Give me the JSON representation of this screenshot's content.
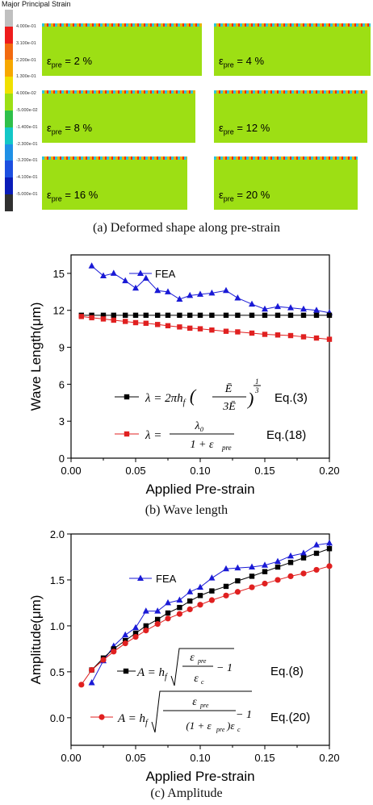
{
  "panel_a": {
    "legend_title": "Major Principal Strain",
    "colorbar_labels": [
      "4.000e-01",
      "3.100e-01",
      "2.200e-01",
      "1.300e-01",
      "4.000e-02",
      "-5.000e-02",
      "-1.400e-01",
      "-2.300e-01",
      "-3.200e-01",
      "-4.100e-01",
      "-5.000e-01"
    ],
    "colorbar_colors": [
      "#c0c0c0",
      "#ee1c1c",
      "#f26a10",
      "#f7a800",
      "#f0e000",
      "#9ddf14",
      "#2fc04a",
      "#13c7c7",
      "#1f90e6",
      "#1c4fe0",
      "#0a1cb8",
      "#303030"
    ],
    "panels": [
      {
        "eps": "ε",
        "sub": "pre",
        "value": " = 2 %"
      },
      {
        "eps": "ε",
        "sub": "pre",
        "value": " = 4 %"
      },
      {
        "eps": "ε",
        "sub": "pre",
        "value": " = 8 %"
      },
      {
        "eps": "ε",
        "sub": "pre",
        "value": " = 12 %"
      },
      {
        "eps": "ε",
        "sub": "pre",
        "value": " = 16 %"
      },
      {
        "eps": "ε",
        "sub": "pre",
        "value": " = 20 %"
      }
    ],
    "caption": "(a) Deformed shape along pre-strain"
  },
  "panel_b_caption": "(b) Wave length",
  "panel_c_caption": "(c) Amplitude",
  "chart_data": [
    {
      "type": "line",
      "xlabel": "Applied Pre-strain",
      "ylabel": "Wave Length(μm)",
      "xlim": [
        0.0,
        0.2
      ],
      "ylim": [
        0,
        16.5
      ],
      "xticks": [
        "0.00",
        "0.05",
        "0.10",
        "0.15",
        "0.20"
      ],
      "yticks": [
        "0",
        "3",
        "6",
        "9",
        "12",
        "15"
      ],
      "series": [
        {
          "name": "FEA",
          "color": "#1a1ad6",
          "marker": "triangle",
          "x": [
            0.016,
            0.025,
            0.033,
            0.042,
            0.05,
            0.058,
            0.067,
            0.075,
            0.084,
            0.092,
            0.1,
            0.109,
            0.12,
            0.129,
            0.14,
            0.15,
            0.16,
            0.17,
            0.18,
            0.19,
            0.2
          ],
          "y": [
            15.6,
            14.8,
            15.0,
            14.4,
            13.8,
            14.6,
            13.6,
            13.5,
            12.9,
            13.2,
            13.3,
            13.4,
            13.6,
            13.0,
            12.5,
            12.1,
            12.3,
            12.2,
            12.1,
            12.0,
            11.8
          ]
        },
        {
          "name": "Eq.(3)",
          "color": "#000000",
          "marker": "square",
          "x": [
            0.008,
            0.016,
            0.025,
            0.033,
            0.042,
            0.05,
            0.058,
            0.067,
            0.075,
            0.084,
            0.092,
            0.1,
            0.109,
            0.12,
            0.129,
            0.14,
            0.15,
            0.16,
            0.17,
            0.18,
            0.19,
            0.2
          ],
          "y": [
            11.6,
            11.6,
            11.6,
            11.6,
            11.6,
            11.6,
            11.6,
            11.6,
            11.6,
            11.6,
            11.6,
            11.6,
            11.6,
            11.6,
            11.6,
            11.6,
            11.6,
            11.6,
            11.6,
            11.6,
            11.6,
            11.6
          ]
        },
        {
          "name": "Eq.(18)",
          "color": "#e02020",
          "marker": "square",
          "x": [
            0.008,
            0.016,
            0.025,
            0.033,
            0.042,
            0.05,
            0.058,
            0.067,
            0.075,
            0.084,
            0.092,
            0.1,
            0.109,
            0.12,
            0.129,
            0.14,
            0.15,
            0.16,
            0.17,
            0.18,
            0.19,
            0.2
          ],
          "y": [
            11.5,
            11.4,
            11.3,
            11.2,
            11.1,
            11.0,
            10.95,
            10.85,
            10.75,
            10.65,
            10.55,
            10.5,
            10.4,
            10.3,
            10.25,
            10.15,
            10.05,
            10.0,
            9.95,
            9.85,
            9.75,
            9.65
          ]
        }
      ],
      "legend": {
        "fea": "FEA",
        "eq3_label": "Eq.(3)",
        "eq18_label": "Eq.(18)",
        "eq3_text": "λ = 2πh",
        "eq18_text": "λ ="
      }
    },
    {
      "type": "line",
      "xlabel": "Applied Pre-strain",
      "ylabel": "Amplitude(μm)",
      "xlim": [
        0.0,
        0.2
      ],
      "ylim": [
        -0.3,
        2.0
      ],
      "xticks": [
        "0.00",
        "0.05",
        "0.10",
        "0.15",
        "0.20"
      ],
      "yticks": [
        "0.0",
        "0.5",
        "1.0",
        "1.5",
        "2.0"
      ],
      "series": [
        {
          "name": "FEA",
          "color": "#1a1ad6",
          "marker": "triangle",
          "x": [
            0.016,
            0.025,
            0.033,
            0.042,
            0.05,
            0.058,
            0.067,
            0.075,
            0.084,
            0.092,
            0.1,
            0.109,
            0.12,
            0.129,
            0.14,
            0.15,
            0.16,
            0.17,
            0.18,
            0.19,
            0.2
          ],
          "y": [
            0.38,
            0.62,
            0.78,
            0.9,
            0.98,
            1.16,
            1.16,
            1.25,
            1.28,
            1.37,
            1.42,
            1.52,
            1.62,
            1.63,
            1.64,
            1.66,
            1.7,
            1.76,
            1.79,
            1.88,
            1.9
          ]
        },
        {
          "name": "Eq.(8)",
          "color": "#000000",
          "marker": "square",
          "x": [
            0.016,
            0.025,
            0.033,
            0.042,
            0.05,
            0.058,
            0.067,
            0.075,
            0.084,
            0.092,
            0.1,
            0.109,
            0.12,
            0.129,
            0.14,
            0.15,
            0.16,
            0.17,
            0.18,
            0.19,
            0.2
          ],
          "y": [
            0.52,
            0.65,
            0.75,
            0.84,
            0.92,
            1.0,
            1.07,
            1.14,
            1.2,
            1.27,
            1.33,
            1.38,
            1.43,
            1.49,
            1.54,
            1.59,
            1.64,
            1.69,
            1.74,
            1.79,
            1.84
          ]
        },
        {
          "name": "Eq.(20)",
          "color": "#e02020",
          "marker": "circle",
          "x": [
            0.008,
            0.016,
            0.025,
            0.033,
            0.042,
            0.05,
            0.058,
            0.067,
            0.075,
            0.084,
            0.092,
            0.1,
            0.109,
            0.12,
            0.129,
            0.14,
            0.15,
            0.16,
            0.17,
            0.18,
            0.19,
            0.2
          ],
          "y": [
            0.36,
            0.52,
            0.63,
            0.72,
            0.81,
            0.88,
            0.95,
            1.02,
            1.08,
            1.13,
            1.18,
            1.23,
            1.28,
            1.33,
            1.37,
            1.42,
            1.46,
            1.5,
            1.54,
            1.57,
            1.61,
            1.65
          ]
        }
      ],
      "legend": {
        "fea": "FEA",
        "eq8_label": "Eq.(8)",
        "eq20_label": "Eq.(20)"
      }
    }
  ]
}
